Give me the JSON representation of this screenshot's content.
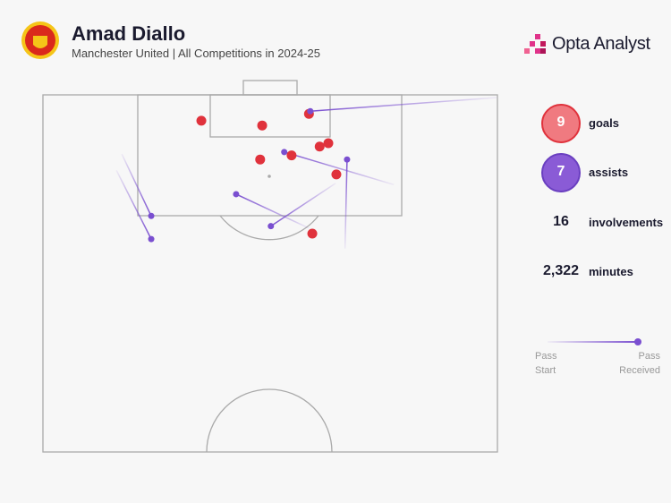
{
  "header": {
    "title": "Amad Diallo",
    "subtitle": "Manchester United | All Competitions in 2024-25",
    "brand": "Opta Analyst"
  },
  "stats": [
    {
      "name": "goals",
      "value": 9
    },
    {
      "name": "assists",
      "value": 7
    },
    {
      "name": "involvements",
      "value": 16
    },
    {
      "name": "minutes",
      "value": 2322,
      "value_label": "2,322"
    }
  ],
  "legend": {
    "start": "Pass Start",
    "end": "Pass Received"
  },
  "chart_data": {
    "type": "scatter",
    "xlim": [
      0,
      68
    ],
    "ylim": [
      0,
      52.5
    ],
    "goals": {
      "color": "#e0323c",
      "x": [
        23.7,
        32.8,
        39.8,
        41.4,
        42.7,
        37.2,
        32.5,
        43.9,
        40.3
      ],
      "y": [
        3.8,
        4.5,
        2.8,
        7.6,
        7.1,
        8.9,
        9.5,
        11.7,
        20.4
      ]
    },
    "assists": {
      "color": "#7a4fd0",
      "x_start": [
        67.9,
        52.5,
        45.2,
        11.8,
        11.0,
        43.8,
        39.8
      ],
      "y_start": [
        0.4,
        13.2,
        22.6,
        8.7,
        11.1,
        13.0,
        19.6
      ],
      "x": [
        40.0,
        36.1,
        45.5,
        16.2,
        16.2,
        34.1,
        28.9
      ],
      "y": [
        2.4,
        8.4,
        9.5,
        17.8,
        21.2,
        19.3,
        14.6
      ]
    }
  }
}
